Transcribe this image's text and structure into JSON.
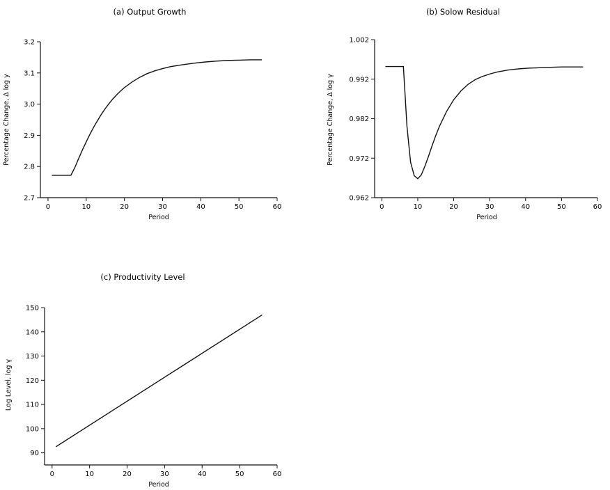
{
  "chart_data": [
    {
      "type": "line",
      "title": "(a) Output Growth",
      "xlabel": "Period",
      "ylabel": "Percentage Change, Δ log y",
      "xlim": [
        -2,
        60
      ],
      "ylim": [
        2.7,
        3.2
      ],
      "xticks": [
        0,
        10,
        20,
        30,
        40,
        50,
        60
      ],
      "yticks": [
        "2.7",
        "2.8",
        "2.9",
        "3.0",
        "3.1",
        "3.2"
      ],
      "series": [
        {
          "x": [
            1,
            2,
            3,
            4,
            5,
            6,
            7,
            8,
            9,
            10,
            11,
            12,
            13,
            14,
            15,
            16,
            17,
            18,
            19,
            20,
            22,
            24,
            26,
            28,
            30,
            32,
            35,
            38,
            41,
            44,
            47,
            50,
            53,
            56
          ],
          "values": [
            2.772,
            2.772,
            2.772,
            2.772,
            2.772,
            2.772,
            2.796,
            2.825,
            2.853,
            2.879,
            2.904,
            2.927,
            2.948,
            2.968,
            2.986,
            3.002,
            3.017,
            3.03,
            3.042,
            3.053,
            3.071,
            3.086,
            3.098,
            3.107,
            3.114,
            3.12,
            3.126,
            3.131,
            3.135,
            3.138,
            3.14,
            3.141,
            3.142,
            3.142
          ]
        }
      ]
    },
    {
      "type": "line",
      "title": "(b) Solow Residual",
      "xlabel": "Period",
      "ylabel": "Percentage Change, Δ log γ",
      "xlim": [
        -2,
        60
      ],
      "ylim": [
        0.962,
        1.002
      ],
      "xticks": [
        0,
        10,
        20,
        30,
        40,
        50,
        60
      ],
      "yticks": [
        "0.962",
        "0.972",
        "0.982",
        "0.992",
        "1.002"
      ],
      "series": [
        {
          "x": [
            1,
            2,
            3,
            4,
            5,
            6,
            7,
            8,
            9,
            10,
            11,
            12,
            13,
            14,
            15,
            16,
            18,
            20,
            22,
            24,
            26,
            28,
            30,
            32,
            35,
            38,
            41,
            44,
            47,
            50,
            53,
            56
          ],
          "values": [
            0.9952,
            0.9952,
            0.9952,
            0.9952,
            0.9952,
            0.9952,
            0.98,
            0.971,
            0.9676,
            0.9668,
            0.9678,
            0.97,
            0.9725,
            0.9752,
            0.9777,
            0.98,
            0.9838,
            0.9868,
            0.989,
            0.9907,
            0.9919,
            0.9927,
            0.9933,
            0.9938,
            0.9943,
            0.9946,
            0.9948,
            0.9949,
            0.995,
            0.9951,
            0.9951,
            0.9951
          ]
        }
      ]
    },
    {
      "type": "line",
      "title": "(c) Productivity Level",
      "xlabel": "Period",
      "ylabel": "Log Level, log γ",
      "xlim": [
        -2,
        60
      ],
      "ylim": [
        85,
        150
      ],
      "xticks": [
        0,
        10,
        20,
        30,
        40,
        50,
        60
      ],
      "yticks": [
        "90",
        "100",
        "110",
        "120",
        "130",
        "140",
        "150"
      ],
      "series": [
        {
          "x": [
            1,
            56
          ],
          "values": [
            92.5,
            147
          ]
        }
      ]
    }
  ]
}
